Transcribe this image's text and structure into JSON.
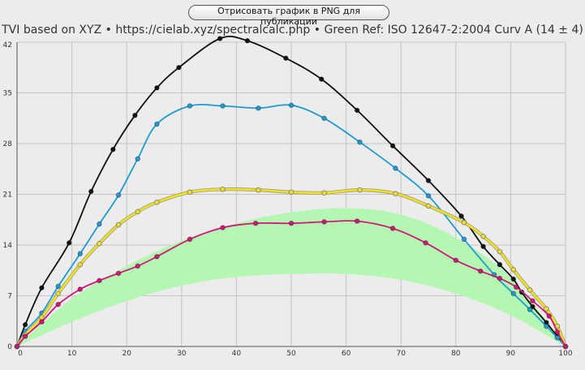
{
  "toolbar": {
    "export_label": "Отрисовать график в PNG для публикации"
  },
  "chart_data": {
    "type": "line",
    "title": "TVI based on XYZ  •  https://cielab.xyz/spectralcalc.php  •  Green Ref: ISO 12647-2:2004 Curv A (14 ± 4)",
    "xlabel": "",
    "ylabel": "",
    "xlim": [
      0,
      100
    ],
    "ylim": [
      0,
      42
    ],
    "x_ticks": [
      0,
      10,
      20,
      30,
      40,
      50,
      60,
      70,
      80,
      90,
      100
    ],
    "y_ticks": [
      0,
      7,
      14,
      21,
      28,
      35,
      42
    ],
    "grid": true,
    "reference_band": {
      "color": "#b3f7b3",
      "x": [
        0,
        10,
        20,
        30,
        40,
        50,
        60,
        70,
        80,
        90,
        100
      ],
      "lower": [
        0,
        3.4,
        6.3,
        8.4,
        9.6,
        10.0,
        10.0,
        9.2,
        7.3,
        4.3,
        0
      ],
      "upper": [
        0,
        6.6,
        11.1,
        14.6,
        17.0,
        18.5,
        19.1,
        18.2,
        15.0,
        9.5,
        0
      ]
    },
    "series": [
      {
        "color": "#111111",
        "x": [
          0,
          1.5,
          4.5,
          9.5,
          13.5,
          17.5,
          21.5,
          25.5,
          29.5,
          37,
          42,
          49,
          55.5,
          62,
          68.5,
          75,
          81,
          85,
          88,
          90.5,
          92,
          94,
          96.5,
          98.5,
          100
        ],
        "y": [
          0,
          3.0,
          8.1,
          14.3,
          21.4,
          27.2,
          31.9,
          35.7,
          38.5,
          42.5,
          42.2,
          39.8,
          36.9,
          32.6,
          27.7,
          22.9,
          18.0,
          13.8,
          11.3,
          9.3,
          7.5,
          5.5,
          3.3,
          1.4,
          0
        ]
      },
      {
        "color": "#1f9bd1",
        "x": [
          0,
          1.5,
          4.5,
          7.5,
          11.5,
          15,
          18.5,
          22,
          25.5,
          31.5,
          37.5,
          44,
          50,
          56,
          62.5,
          69,
          75,
          81.5,
          87,
          90.5,
          93.5,
          96.5,
          98.5,
          100
        ],
        "y": [
          0,
          2.1,
          4.6,
          8.3,
          12.8,
          16.9,
          20.9,
          25.9,
          30.7,
          33.2,
          33.2,
          32.9,
          33.3,
          31.5,
          28.2,
          24.6,
          20.8,
          14.8,
          9.9,
          7.3,
          5.1,
          2.8,
          1.2,
          0
        ]
      },
      {
        "color": "#f2e21a",
        "x": [
          0,
          1.5,
          4.5,
          7.5,
          11.5,
          15,
          18.5,
          22,
          25.5,
          31.5,
          37.5,
          44,
          50,
          56,
          62.5,
          69,
          75,
          81.5,
          85,
          88,
          90.5,
          93.5,
          96.5,
          98.5,
          100
        ],
        "y": [
          0,
          1.6,
          4.0,
          7.3,
          11.3,
          14.2,
          16.8,
          18.6,
          19.9,
          21.3,
          21.7,
          21.6,
          21.3,
          21.2,
          21.6,
          21.1,
          19.4,
          17.1,
          15.2,
          13.1,
          10.6,
          7.8,
          5.2,
          2.8,
          0
        ]
      },
      {
        "color": "#d4157a",
        "x": [
          0,
          1.5,
          4.5,
          7.5,
          11.5,
          15,
          18.5,
          22,
          25.5,
          31.5,
          37.5,
          43.5,
          50,
          56,
          62,
          68.5,
          74.5,
          80,
          84.5,
          88,
          91,
          94,
          97,
          98.5,
          100
        ],
        "y": [
          0,
          1.4,
          3.4,
          5.8,
          7.9,
          9.1,
          10.1,
          11.1,
          12.4,
          14.8,
          16.4,
          17.0,
          17.0,
          17.2,
          17.3,
          16.3,
          14.3,
          11.9,
          10.4,
          9.4,
          8.2,
          6.3,
          4.2,
          2.0,
          0
        ]
      }
    ]
  }
}
